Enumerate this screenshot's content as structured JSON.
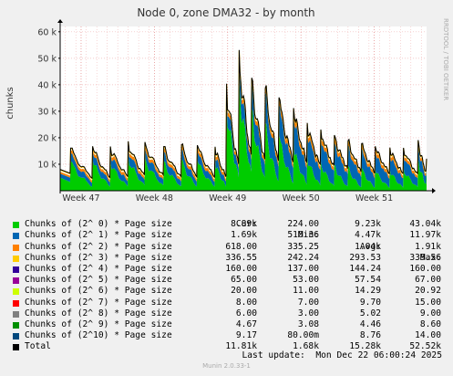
{
  "chart_data": {
    "type": "area",
    "title": "Node 0, zone DMA32 - by month",
    "ylabel": "chunks",
    "side_label": "RRDTOOL / TOBI OETIKER",
    "ylim": [
      0,
      62000
    ],
    "y_ticks": [
      {
        "value": 10000,
        "label": "10 k"
      },
      {
        "value": 20000,
        "label": "20 k"
      },
      {
        "value": 30000,
        "label": "30 k"
      },
      {
        "value": 40000,
        "label": "40 k"
      },
      {
        "value": 50000,
        "label": "50 k"
      },
      {
        "value": 60000,
        "label": "60 k"
      }
    ],
    "x_ticks": [
      "Week 47",
      "Week 48",
      "Week 49",
      "Week 50",
      "Week 51"
    ],
    "x_tick_pos": [
      0.5,
      7.5,
      14.5,
      21.5,
      28.5
    ],
    "xlim": [
      -1.5,
      33.5
    ],
    "stacked": true,
    "columns": [
      "Cur:",
      "Min:",
      "Avg:",
      "Max:"
    ],
    "series": [
      {
        "name": "Chunks of (2^ 0) * Page size",
        "color": "#00cc00",
        "cur": "8.89k",
        "min": "224.00",
        "avg": "9.23k",
        "max": "43.04k"
      },
      {
        "name": "Chunks of (2^ 1) * Page size",
        "color": "#0066b3",
        "cur": "1.69k",
        "min": "510.36",
        "avg": "4.47k",
        "max": "11.97k"
      },
      {
        "name": "Chunks of (2^ 2) * Page size",
        "color": "#ff8000",
        "cur": "618.00",
        "min": "335.25",
        "avg": "1.04k",
        "max": "1.91k"
      },
      {
        "name": "Chunks of (2^ 3) * Page size",
        "color": "#ffcc00",
        "cur": "336.55",
        "min": "242.24",
        "avg": "293.53",
        "max": "339.56"
      },
      {
        "name": "Chunks of (2^ 4) * Page size",
        "color": "#330099",
        "cur": "160.00",
        "min": "137.00",
        "avg": "144.24",
        "max": "160.00"
      },
      {
        "name": "Chunks of (2^ 5) * Page size",
        "color": "#990099",
        "cur": "65.00",
        "min": "53.00",
        "avg": "57.54",
        "max": "67.00"
      },
      {
        "name": "Chunks of (2^ 6) * Page size",
        "color": "#ccff00",
        "cur": "20.00",
        "min": "11.00",
        "avg": "14.29",
        "max": "20.92"
      },
      {
        "name": "Chunks of (2^ 7) * Page size",
        "color": "#ff0000",
        "cur": "8.00",
        "min": "7.00",
        "avg": "9.70",
        "max": "15.00"
      },
      {
        "name": "Chunks of (2^ 8) * Page size",
        "color": "#808080",
        "cur": "6.00",
        "min": "3.00",
        "avg": "5.02",
        "max": "9.00"
      },
      {
        "name": "Chunks of (2^ 9) * Page size",
        "color": "#008f00",
        "cur": "4.67",
        "min": "3.08",
        "avg": "4.46",
        "max": "8.60"
      },
      {
        "name": "Chunks of (2^10) * Page size",
        "color": "#00487d",
        "cur": "9.17",
        "min": "80.00m",
        "avg": "8.76",
        "max": "14.00"
      },
      {
        "name": "Total",
        "color": "#000000",
        "cur": "11.81k",
        "min": "1.68k",
        "avg": "15.28k",
        "max": "52.52k"
      }
    ],
    "peaks": [
      {
        "day": -0.5,
        "o0": 11000,
        "o1": 3000,
        "o2": 1200
      },
      {
        "day": 1.6,
        "o0": 11500,
        "o1": 3200,
        "o2": 1200
      },
      {
        "day": 3.3,
        "o0": 11000,
        "o1": 3500,
        "o2": 1300
      },
      {
        "day": 5.0,
        "o0": 13000,
        "o1": 3500,
        "o2": 1300
      },
      {
        "day": 6.6,
        "o0": 12500,
        "o1": 3700,
        "o2": 1300
      },
      {
        "day": 8.4,
        "o0": 11000,
        "o1": 3500,
        "o2": 1300
      },
      {
        "day": 10.1,
        "o0": 11500,
        "o1": 3700,
        "o2": 1300
      },
      {
        "day": 11.6,
        "o0": 11500,
        "o1": 3500,
        "o2": 1300
      },
      {
        "day": 13.3,
        "o0": 11000,
        "o1": 3400,
        "o2": 1300
      },
      {
        "day": 14.4,
        "o0": 33000,
        "o1": 5000,
        "o2": 1500
      },
      {
        "day": 15.6,
        "o0": 43000,
        "o1": 7500,
        "o2": 1700
      },
      {
        "day": 16.8,
        "o0": 31000,
        "o1": 9000,
        "o2": 1700
      },
      {
        "day": 18.1,
        "o0": 25000,
        "o1": 11000,
        "o2": 1800
      },
      {
        "day": 19.4,
        "o0": 21000,
        "o1": 11500,
        "o2": 1800
      },
      {
        "day": 20.8,
        "o0": 17000,
        "o1": 11500,
        "o2": 1800
      },
      {
        "day": 22.1,
        "o0": 13000,
        "o1": 10000,
        "o2": 1700
      },
      {
        "day": 23.4,
        "o0": 11000,
        "o1": 9500,
        "o2": 1700
      },
      {
        "day": 24.7,
        "o0": 10000,
        "o1": 8500,
        "o2": 1600
      },
      {
        "day": 26.0,
        "o0": 9000,
        "o1": 7500,
        "o2": 1500
      },
      {
        "day": 27.3,
        "o0": 8500,
        "o1": 7000,
        "o2": 1400
      },
      {
        "day": 28.6,
        "o0": 8000,
        "o1": 6500,
        "o2": 1400
      },
      {
        "day": 30.0,
        "o0": 8000,
        "o1": 6000,
        "o2": 1400
      },
      {
        "day": 31.3,
        "o0": 8500,
        "o1": 5500,
        "o2": 1300
      },
      {
        "day": 32.7,
        "o0": 12000,
        "o1": 5000,
        "o2": 1200
      }
    ],
    "current": {
      "o0": 8890,
      "o1": 1690,
      "o2": 618
    }
  },
  "footer": {
    "last_update": "Last update:  Mon Dec 22 06:00:24 2025",
    "munin": "Munin 2.0.33-1"
  }
}
